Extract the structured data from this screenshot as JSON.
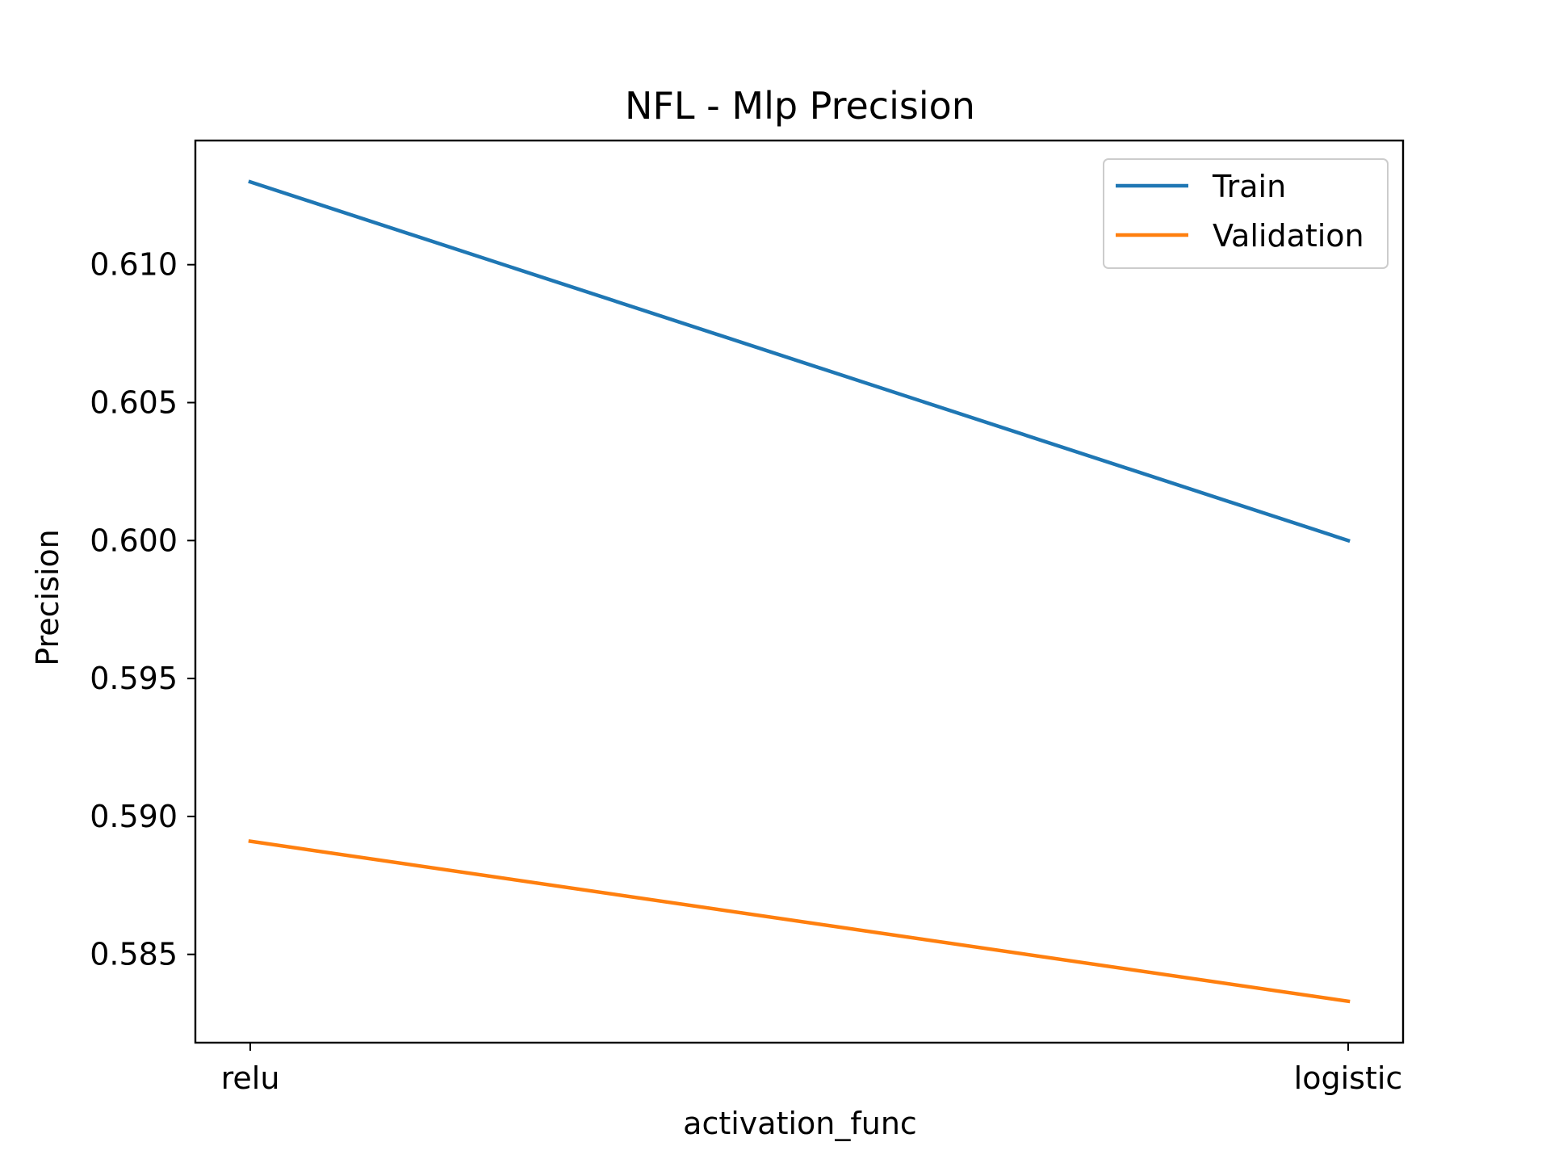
{
  "chart_data": {
    "type": "line",
    "title": "NFL - Mlp Precision",
    "xlabel": "activation_func",
    "ylabel": "Precision",
    "categories": [
      "relu",
      "logistic"
    ],
    "series": [
      {
        "name": "Train",
        "values": [
          0.613,
          0.6
        ],
        "color": "#1f77b4"
      },
      {
        "name": "Validation",
        "values": [
          0.5891,
          0.5833
        ],
        "color": "#ff7f0e"
      }
    ],
    "ylim": [
      0.5818,
      0.6145
    ],
    "yticks": [
      0.585,
      0.59,
      0.595,
      0.6,
      0.605,
      0.61
    ],
    "ytick_labels": [
      "0.585",
      "0.590",
      "0.595",
      "0.600",
      "0.605",
      "0.610"
    ],
    "grid": false,
    "legend_position": "top-right"
  }
}
